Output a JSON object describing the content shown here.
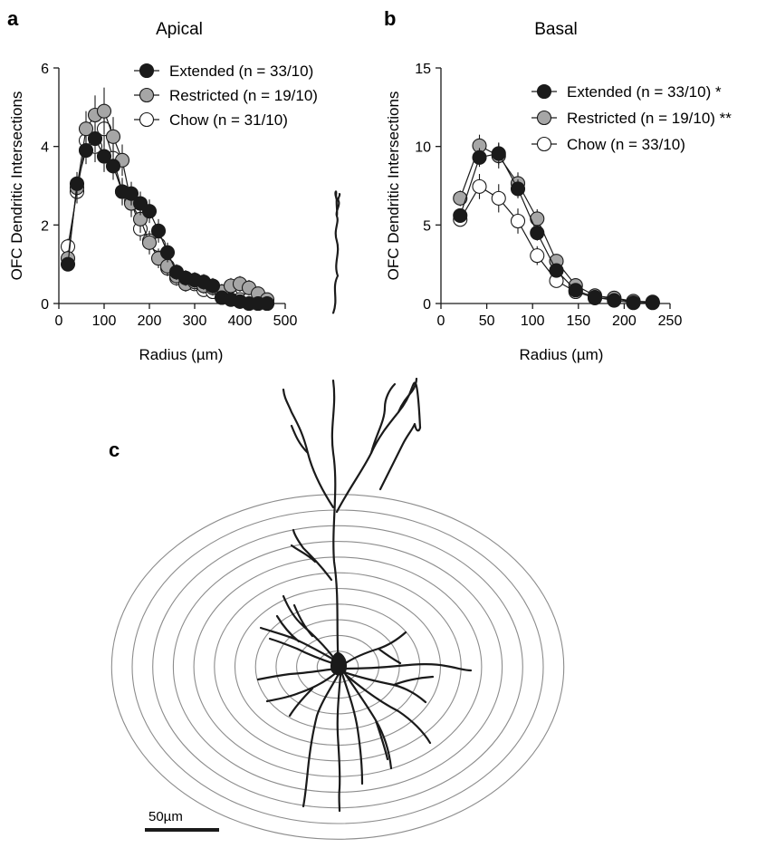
{
  "chart_data": [
    {
      "type": "line",
      "panel_letter": "a",
      "title": "Apical",
      "xlabel": "Radius (µm)",
      "ylabel": "OFC Dendritic Intersections",
      "xlim": [
        0,
        500
      ],
      "ylim": [
        0,
        6
      ],
      "xticks": [
        "0",
        "100",
        "200",
        "300",
        "400",
        "500"
      ],
      "yticks": [
        "0",
        "2",
        "4",
        "6"
      ],
      "grid": false,
      "legend_position": "top-right",
      "x": [
        20,
        40,
        60,
        80,
        100,
        120,
        140,
        160,
        180,
        200,
        220,
        240,
        260,
        280,
        300,
        320,
        340,
        360,
        380,
        400,
        420,
        440,
        460
      ],
      "series": [
        {
          "name": "Extended (n = 33/10)",
          "fill": "#1a1a1a",
          "values": [
            1.0,
            3.05,
            3.9,
            4.2,
            3.75,
            3.5,
            2.85,
            2.8,
            2.55,
            2.35,
            1.85,
            1.3,
            0.8,
            0.65,
            0.6,
            0.55,
            0.45,
            0.15,
            0.1,
            0.05,
            0.0,
            0.0,
            0.0
          ],
          "errors": [
            0.15,
            0.3,
            0.35,
            0.35,
            0.4,
            0.35,
            0.3,
            0.3,
            0.3,
            0.3,
            0.3,
            0.25,
            0.2,
            0.2,
            0.2,
            0.2,
            0.2,
            0.15,
            0.1,
            0.1,
            0.05,
            0.05,
            0.05
          ]
        },
        {
          "name": "Restricted (n = 19/10)",
          "fill": "#a6a6a6",
          "values": [
            1.15,
            2.95,
            4.45,
            4.8,
            4.9,
            4.25,
            3.65,
            2.55,
            2.15,
            1.55,
            1.15,
            0.95,
            0.7,
            0.5,
            0.55,
            0.45,
            0.4,
            0.3,
            0.45,
            0.5,
            0.4,
            0.25,
            0.1
          ],
          "errors": [
            0.2,
            0.3,
            0.45,
            0.5,
            0.6,
            0.5,
            0.4,
            0.35,
            0.35,
            0.3,
            0.25,
            0.25,
            0.2,
            0.2,
            0.2,
            0.2,
            0.2,
            0.2,
            0.2,
            0.2,
            0.2,
            0.15,
            0.1
          ]
        },
        {
          "name": "Chow (n = 31/10)",
          "fill": "#ffffff",
          "values": [
            1.45,
            2.85,
            4.15,
            4.0,
            4.45,
            3.7,
            2.85,
            2.6,
            1.9,
            1.6,
            1.5,
            0.9,
            0.65,
            0.55,
            0.5,
            0.35,
            0.3,
            0.3,
            0.2,
            0.1,
            0.1,
            0.0,
            0.0
          ],
          "errors": [
            0.2,
            0.3,
            0.4,
            0.4,
            0.45,
            0.4,
            0.35,
            0.3,
            0.3,
            0.25,
            0.25,
            0.2,
            0.2,
            0.2,
            0.15,
            0.15,
            0.15,
            0.15,
            0.1,
            0.1,
            0.1,
            0.05,
            0.05
          ]
        }
      ]
    },
    {
      "type": "line",
      "panel_letter": "b",
      "title": "Basal",
      "xlabel": "Radius (µm)",
      "ylabel": "OFC Dendritic Intersections",
      "xlim": [
        0,
        250
      ],
      "ylim": [
        0,
        15
      ],
      "xticks": [
        "0",
        "50",
        "100",
        "150",
        "200",
        "250"
      ],
      "yticks": [
        "0",
        "5",
        "10",
        "15"
      ],
      "grid": false,
      "legend_position": "top-right",
      "x": [
        21,
        42,
        63,
        84,
        105,
        126,
        147,
        168,
        189,
        210,
        231
      ],
      "series": [
        {
          "name": "Extended (n = 33/10) *",
          "fill": "#1a1a1a",
          "values": [
            5.6,
            9.3,
            9.55,
            7.3,
            4.5,
            2.1,
            0.85,
            0.4,
            0.2,
            0.05,
            0.05
          ],
          "errors": [
            0.4,
            0.6,
            0.7,
            0.6,
            0.5,
            0.4,
            0.25,
            0.2,
            0.1,
            0.05,
            0.05
          ]
        },
        {
          "name": "Restricted (n = 19/10) **",
          "fill": "#a6a6a6",
          "values": [
            6.7,
            10.05,
            9.4,
            7.65,
            5.4,
            2.7,
            1.15,
            0.5,
            0.35,
            0.15,
            0.1
          ],
          "errors": [
            0.5,
            0.7,
            0.8,
            0.7,
            0.6,
            0.45,
            0.3,
            0.2,
            0.15,
            0.1,
            0.05
          ]
        },
        {
          "name": "Chow (n = 33/10)",
          "fill": "#ffffff",
          "values": [
            5.35,
            7.45,
            6.7,
            5.25,
            3.05,
            1.45,
            0.75,
            0.35,
            0.35,
            0.05,
            0.05
          ],
          "errors": [
            0.4,
            0.8,
            0.9,
            0.8,
            0.6,
            0.4,
            0.25,
            0.2,
            0.15,
            0.05,
            0.05
          ]
        }
      ]
    }
  ],
  "neuron_panel": {
    "panel_letter": "c",
    "ring_count": 11,
    "scale_bar_label": "50µm"
  },
  "colors": {
    "marker_stroke": "#1a1a1a",
    "ring": "#8c8c8c",
    "dendrite": "#1a1a1a"
  }
}
